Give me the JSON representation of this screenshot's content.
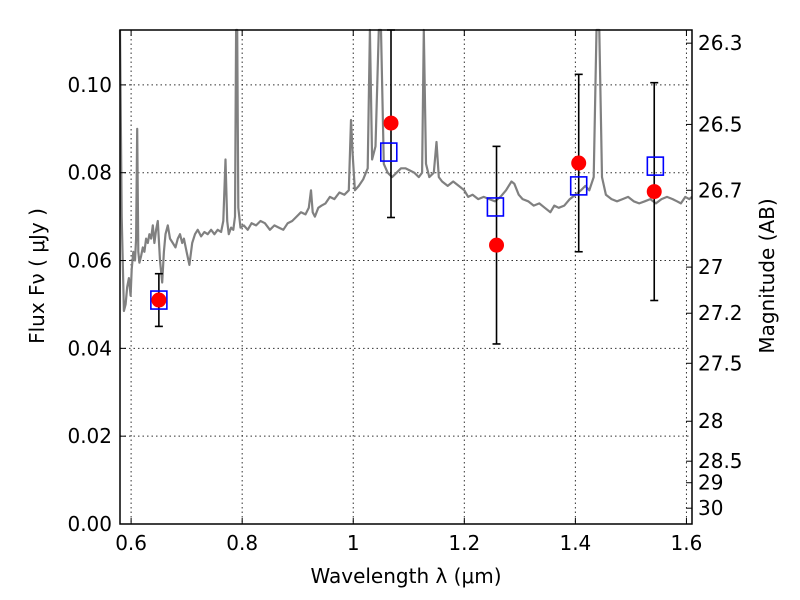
{
  "chart_data": {
    "type": "scatter",
    "xlabel": "Wavelength  λ (μm)",
    "ylabel": "Flux  Fν  ( μJy )",
    "y2label": "Magnitude (AB)",
    "xlim": [
      0.58,
      1.61
    ],
    "ylim": [
      0.0,
      0.1125
    ],
    "grid": true,
    "x_ticks": [
      {
        "value": 0.6,
        "label": "0.6"
      },
      {
        "value": 0.8,
        "label": "0.8"
      },
      {
        "value": 1.0,
        "label": "1"
      },
      {
        "value": 1.2,
        "label": "1.2"
      },
      {
        "value": 1.4,
        "label": "1.4"
      },
      {
        "value": 1.6,
        "label": "1.6"
      }
    ],
    "y_ticks": [
      {
        "value": 0.0,
        "label": "0.00"
      },
      {
        "value": 0.02,
        "label": "0.02"
      },
      {
        "value": 0.04,
        "label": "0.04"
      },
      {
        "value": 0.06,
        "label": "0.06"
      },
      {
        "value": 0.08,
        "label": "0.08"
      },
      {
        "value": 0.1,
        "label": "0.10"
      }
    ],
    "y2_ticks": [
      {
        "flux": 0.1095,
        "label": "26.3"
      },
      {
        "flux": 0.091,
        "label": "26.5"
      },
      {
        "flux": 0.076,
        "label": "26.7"
      },
      {
        "flux": 0.0585,
        "label": "27"
      },
      {
        "flux": 0.048,
        "label": "27.2"
      },
      {
        "flux": 0.0366,
        "label": "27.5"
      },
      {
        "flux": 0.0234,
        "label": "28"
      },
      {
        "flux": 0.0143,
        "label": "28.5"
      },
      {
        "flux": 0.0094,
        "label": "29"
      },
      {
        "flux": 0.0036,
        "label": "30"
      }
    ],
    "series": [
      {
        "kind": "spectrum",
        "color": "#808080",
        "points": [
          [
            0.58,
            0.115
          ],
          [
            0.583,
            0.07
          ],
          [
            0.587,
            0.0485
          ],
          [
            0.59,
            0.05
          ],
          [
            0.593,
            0.054
          ],
          [
            0.596,
            0.056
          ],
          [
            0.599,
            0.052
          ],
          [
            0.601,
            0.058
          ],
          [
            0.604,
            0.062
          ],
          [
            0.607,
            0.06
          ],
          [
            0.609,
            0.065
          ],
          [
            0.611,
            0.09
          ],
          [
            0.613,
            0.062
          ],
          [
            0.615,
            0.0595
          ],
          [
            0.618,
            0.061
          ],
          [
            0.621,
            0.063
          ],
          [
            0.624,
            0.062
          ],
          [
            0.627,
            0.065
          ],
          [
            0.63,
            0.064
          ],
          [
            0.633,
            0.066
          ],
          [
            0.636,
            0.065
          ],
          [
            0.639,
            0.068
          ],
          [
            0.642,
            0.064
          ],
          [
            0.645,
            0.067
          ],
          [
            0.648,
            0.069
          ],
          [
            0.652,
            0.06
          ],
          [
            0.656,
            0.055
          ],
          [
            0.659,
            0.062
          ],
          [
            0.662,
            0.066
          ],
          [
            0.666,
            0.068
          ],
          [
            0.67,
            0.065
          ],
          [
            0.675,
            0.064
          ],
          [
            0.68,
            0.063
          ],
          [
            0.684,
            0.065
          ],
          [
            0.688,
            0.066
          ],
          [
            0.692,
            0.064
          ],
          [
            0.695,
            0.065
          ],
          [
            0.7,
            0.062
          ],
          [
            0.705,
            0.059
          ],
          [
            0.71,
            0.064
          ],
          [
            0.715,
            0.066
          ],
          [
            0.72,
            0.067
          ],
          [
            0.726,
            0.0655
          ],
          [
            0.732,
            0.0665
          ],
          [
            0.738,
            0.066
          ],
          [
            0.744,
            0.067
          ],
          [
            0.75,
            0.066
          ],
          [
            0.756,
            0.067
          ],
          [
            0.762,
            0.0665
          ],
          [
            0.766,
            0.069
          ],
          [
            0.77,
            0.083
          ],
          [
            0.773,
            0.069
          ],
          [
            0.776,
            0.066
          ],
          [
            0.78,
            0.0675
          ],
          [
            0.784,
            0.067
          ],
          [
            0.787,
            0.07
          ],
          [
            0.789,
            0.115
          ],
          [
            0.791,
            0.115
          ],
          [
            0.793,
            0.072
          ],
          [
            0.797,
            0.0675
          ],
          [
            0.803,
            0.068
          ],
          [
            0.81,
            0.067
          ],
          [
            0.817,
            0.0685
          ],
          [
            0.825,
            0.068
          ],
          [
            0.833,
            0.069
          ],
          [
            0.841,
            0.0685
          ],
          [
            0.85,
            0.067
          ],
          [
            0.858,
            0.068
          ],
          [
            0.866,
            0.0675
          ],
          [
            0.874,
            0.067
          ],
          [
            0.882,
            0.0685
          ],
          [
            0.89,
            0.069
          ],
          [
            0.898,
            0.07
          ],
          [
            0.906,
            0.071
          ],
          [
            0.914,
            0.0705
          ],
          [
            0.92,
            0.072
          ],
          [
            0.924,
            0.076
          ],
          [
            0.927,
            0.071
          ],
          [
            0.931,
            0.07
          ],
          [
            0.937,
            0.072
          ],
          [
            0.943,
            0.0725
          ],
          [
            0.95,
            0.073
          ],
          [
            0.958,
            0.0745
          ],
          [
            0.966,
            0.074
          ],
          [
            0.975,
            0.0755
          ],
          [
            0.984,
            0.075
          ],
          [
            0.992,
            0.076
          ],
          [
            0.996,
            0.092
          ],
          [
            0.999,
            0.084
          ],
          [
            1.003,
            0.076
          ],
          [
            1.01,
            0.077
          ],
          [
            1.018,
            0.0785
          ],
          [
            1.026,
            0.081
          ],
          [
            1.03,
            0.115
          ],
          [
            1.034,
            0.083
          ],
          [
            1.04,
            0.086
          ],
          [
            1.046,
            0.115
          ],
          [
            1.05,
            0.115
          ],
          [
            1.055,
            0.082
          ],
          [
            1.062,
            0.08
          ],
          [
            1.07,
            0.079
          ],
          [
            1.078,
            0.08
          ],
          [
            1.086,
            0.081
          ],
          [
            1.094,
            0.081
          ],
          [
            1.102,
            0.0805
          ],
          [
            1.11,
            0.08
          ],
          [
            1.118,
            0.079
          ],
          [
            1.124,
            0.08
          ],
          [
            1.127,
            0.115
          ],
          [
            1.131,
            0.082
          ],
          [
            1.137,
            0.079
          ],
          [
            1.145,
            0.08
          ],
          [
            1.15,
            0.087
          ],
          [
            1.154,
            0.079
          ],
          [
            1.16,
            0.078
          ],
          [
            1.17,
            0.077
          ],
          [
            1.18,
            0.078
          ],
          [
            1.19,
            0.077
          ],
          [
            1.2,
            0.076
          ],
          [
            1.207,
            0.0745
          ],
          [
            1.215,
            0.075
          ],
          [
            1.225,
            0.074
          ],
          [
            1.235,
            0.0745
          ],
          [
            1.245,
            0.074
          ],
          [
            1.255,
            0.0735
          ],
          [
            1.265,
            0.0745
          ],
          [
            1.275,
            0.076
          ],
          [
            1.285,
            0.078
          ],
          [
            1.29,
            0.0775
          ],
          [
            1.298,
            0.075
          ],
          [
            1.305,
            0.074
          ],
          [
            1.315,
            0.0735
          ],
          [
            1.325,
            0.0725
          ],
          [
            1.335,
            0.073
          ],
          [
            1.345,
            0.072
          ],
          [
            1.355,
            0.071
          ],
          [
            1.362,
            0.0725
          ],
          [
            1.37,
            0.072
          ],
          [
            1.38,
            0.0725
          ],
          [
            1.39,
            0.074
          ],
          [
            1.4,
            0.075
          ],
          [
            1.41,
            0.076
          ],
          [
            1.418,
            0.077
          ],
          [
            1.425,
            0.076
          ],
          [
            1.433,
            0.079
          ],
          [
            1.438,
            0.115
          ],
          [
            1.443,
            0.115
          ],
          [
            1.448,
            0.079
          ],
          [
            1.455,
            0.075
          ],
          [
            1.465,
            0.074
          ],
          [
            1.475,
            0.0735
          ],
          [
            1.485,
            0.074
          ],
          [
            1.495,
            0.0745
          ],
          [
            1.505,
            0.0735
          ],
          [
            1.515,
            0.073
          ],
          [
            1.525,
            0.0735
          ],
          [
            1.535,
            0.074
          ],
          [
            1.545,
            0.073
          ],
          [
            1.555,
            0.074
          ],
          [
            1.565,
            0.0745
          ],
          [
            1.575,
            0.074
          ],
          [
            1.583,
            0.0735
          ],
          [
            1.59,
            0.073
          ],
          [
            1.598,
            0.0745
          ],
          [
            1.605,
            0.074
          ],
          [
            1.61,
            0.0745
          ]
        ]
      },
      {
        "kind": "observed",
        "color": "#ff0000",
        "points": [
          {
            "x": 0.65,
            "y": 0.051,
            "err": 0.006
          },
          {
            "x": 1.068,
            "y": 0.0913,
            "err": 0.0215
          },
          {
            "x": 1.258,
            "y": 0.0635,
            "err": 0.0225
          },
          {
            "x": 1.406,
            "y": 0.0822,
            "err": 0.0202
          },
          {
            "x": 1.542,
            "y": 0.0757,
            "err": 0.0248
          }
        ]
      },
      {
        "kind": "model",
        "color": "#0000ff",
        "points": [
          {
            "x": 0.65,
            "y": 0.051
          },
          {
            "x": 1.064,
            "y": 0.0847
          },
          {
            "x": 1.256,
            "y": 0.0722
          },
          {
            "x": 1.406,
            "y": 0.077
          },
          {
            "x": 1.544,
            "y": 0.0815
          }
        ]
      }
    ]
  }
}
